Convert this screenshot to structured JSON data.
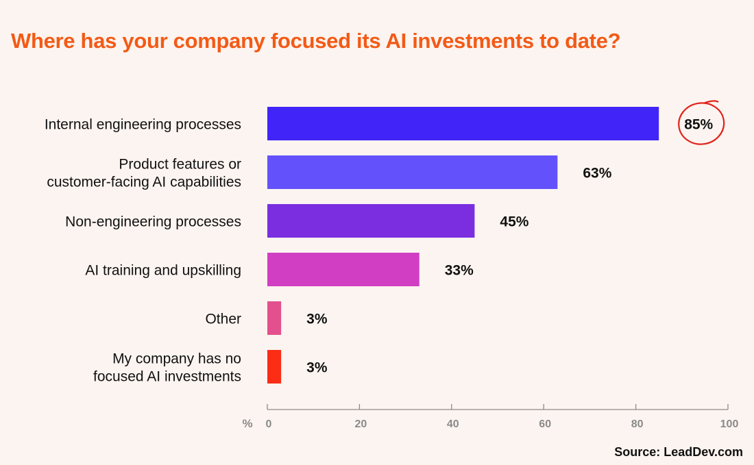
{
  "chart_data": {
    "type": "bar",
    "orientation": "horizontal",
    "title": "Where has your company focused its AI investments to date?",
    "xlabel": "%",
    "xlim": [
      0,
      100
    ],
    "ticks": [
      "0",
      "20",
      "40",
      "60",
      "80",
      "100"
    ],
    "grid": false,
    "categories": [
      {
        "lines": [
          "Internal engineering processes"
        ]
      },
      {
        "lines": [
          "Product features or",
          "customer-facing AI capabilities"
        ]
      },
      {
        "lines": [
          "Non-engineering processes"
        ]
      },
      {
        "lines": [
          "AI training and upskilling"
        ]
      },
      {
        "lines": [
          "Other"
        ]
      },
      {
        "lines": [
          "My company has no",
          "focused AI investments"
        ]
      }
    ],
    "values": [
      85,
      63,
      45,
      33,
      3,
      3
    ],
    "value_labels": [
      "85%",
      "63%",
      "45%",
      "33%",
      "3%",
      "3%"
    ],
    "colors": [
      "#4124f7",
      "#6352fb",
      "#7b2ee0",
      "#d13ec4",
      "#e4508e",
      "#fb2d15"
    ],
    "highlighted_index": 0,
    "highlight_color": "#e0231a"
  },
  "source": "Source: LeadDev.com"
}
